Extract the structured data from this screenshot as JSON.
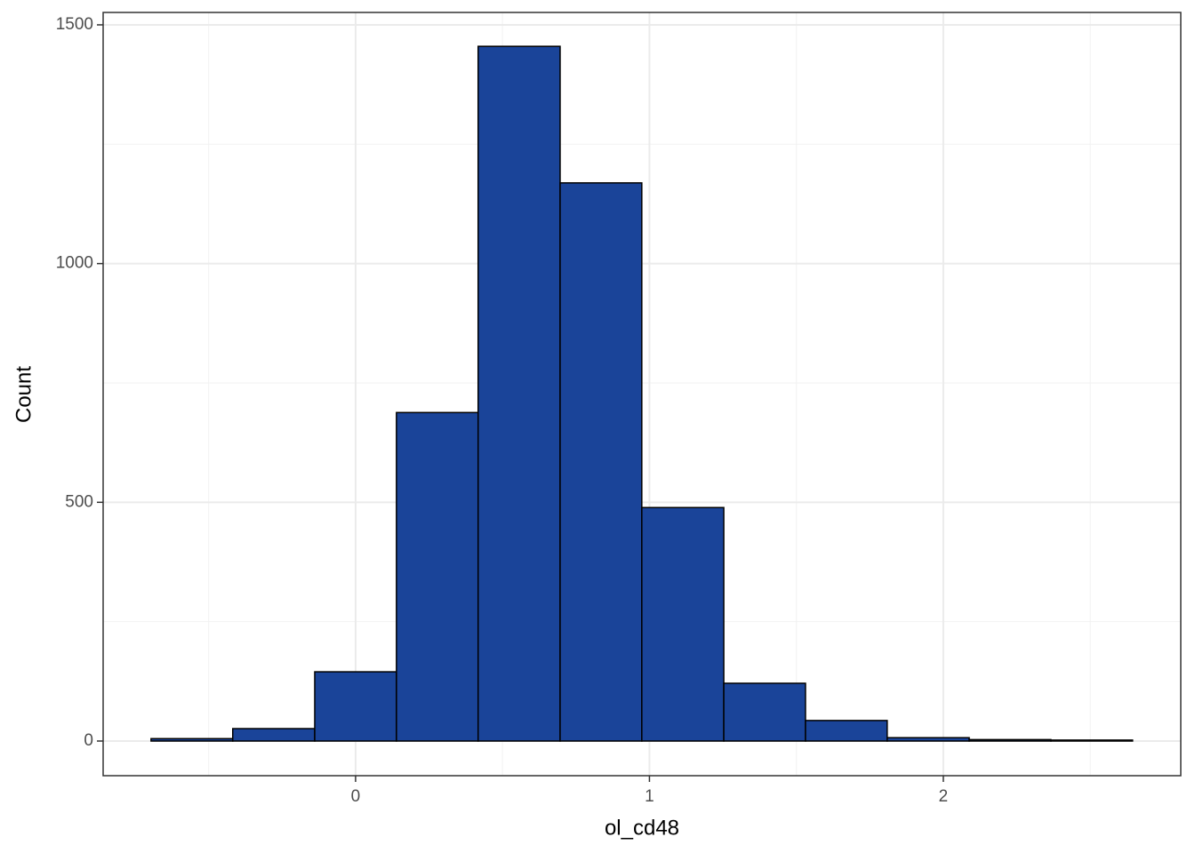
{
  "chart_data": {
    "type": "histogram",
    "x_label": "ol_cd48",
    "y_label": "Count",
    "bins": [
      -0.696,
      -0.418,
      -0.139,
      0.139,
      0.417,
      0.696,
      0.974,
      1.253,
      1.531,
      1.809,
      2.088,
      2.366,
      2.644
    ],
    "counts": [
      5,
      26,
      145,
      688,
      1455,
      1169,
      489,
      121,
      43,
      7,
      3,
      2
    ],
    "color": "#1a4499",
    "xlim": [
      -0.859,
      2.808
    ],
    "ylim": [
      -72.6,
      1526
    ],
    "xticks": [
      0,
      1,
      2
    ],
    "yticks": [
      0,
      500,
      1000,
      1500
    ],
    "xminor": [
      -0.5,
      0.5,
      1.5,
      2.5
    ],
    "yminor": [
      250,
      750,
      1250
    ],
    "grid": true
  }
}
